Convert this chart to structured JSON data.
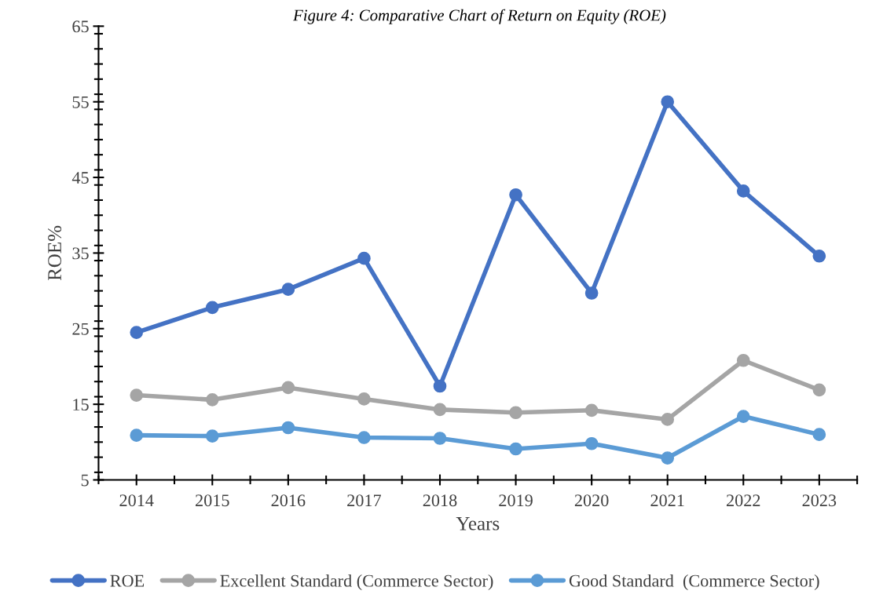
{
  "chart_data": {
    "type": "line",
    "title": "Figure 4: Comparative Chart of Return on Equity (ROE)",
    "xlabel": "Years",
    "ylabel": "ROE%",
    "categories": [
      "2014",
      "2015",
      "2016",
      "2017",
      "2018",
      "2019",
      "2020",
      "2021",
      "2022",
      "2023"
    ],
    "series": [
      {
        "name": "ROE",
        "color": "#4472c4",
        "values": [
          24.5,
          27.8,
          30.2,
          34.3,
          17.4,
          42.7,
          29.7,
          55.0,
          43.2,
          34.6
        ]
      },
      {
        "name": "Excellent Standard (Commerce Sector)",
        "color": "#a5a5a5",
        "values": [
          16.2,
          15.6,
          17.2,
          15.7,
          14.3,
          13.9,
          14.2,
          13.0,
          20.8,
          16.9
        ]
      },
      {
        "name": "Good Standard  (Commerce Sector)",
        "color": "#5b9bd5",
        "values": [
          10.9,
          10.8,
          11.9,
          10.6,
          10.5,
          9.1,
          9.8,
          7.9,
          13.4,
          11.0
        ]
      }
    ],
    "ylim": [
      5,
      65
    ],
    "yticks": [
      5,
      15,
      25,
      35,
      45,
      55,
      65
    ],
    "grid": false,
    "legend": "bottom",
    "marker": "circle",
    "line_style": "solid"
  }
}
